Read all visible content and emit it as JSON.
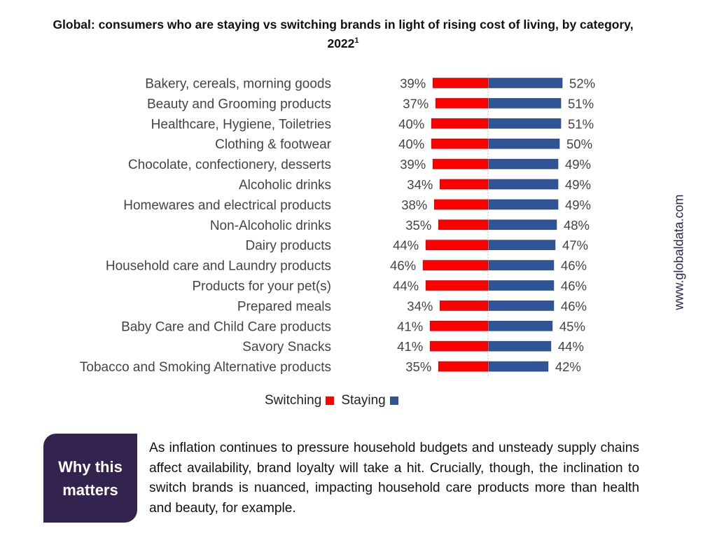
{
  "chart_data": {
    "type": "bar",
    "orientation": "horizontal-diverging",
    "title": "Global: consumers who are staying vs switching brands in light of rising cost of living, by category, 2022",
    "title_superscript": "1",
    "xlabel": "",
    "ylabel": "",
    "unit": "%",
    "grid": false,
    "legend_position": "bottom",
    "categories": [
      "Bakery, cereals, morning goods",
      "Beauty and Grooming products",
      "Healthcare, Hygiene, Toiletries",
      "Clothing & footwear",
      "Chocolate, confectionery, desserts",
      "Alcoholic drinks",
      "Homewares and electrical products",
      "Non-Alcoholic drinks",
      "Dairy products",
      "Household care and Laundry products",
      "Products for your pet(s)",
      "Prepared meals",
      "Baby Care and Child Care products",
      "Savory Snacks",
      "Tobacco and Smoking Alternative products"
    ],
    "series": [
      {
        "name": "Switching",
        "color": "#ff0000",
        "direction": "left",
        "values": [
          39,
          37,
          40,
          40,
          39,
          34,
          38,
          35,
          44,
          46,
          44,
          34,
          41,
          41,
          35
        ]
      },
      {
        "name": "Staying",
        "color": "#2f5597",
        "direction": "right",
        "values": [
          52,
          51,
          51,
          50,
          49,
          49,
          49,
          48,
          47,
          46,
          46,
          46,
          45,
          44,
          42
        ]
      }
    ]
  },
  "legend": {
    "items": [
      {
        "label": "Switching",
        "color": "#ff0000"
      },
      {
        "label": "Staying",
        "color": "#2f5597"
      }
    ]
  },
  "side_label": "www.globaldata.com",
  "why_box": {
    "heading_line1": "Why this",
    "heading_line2": "matters",
    "color": "#33234f",
    "text": "As inflation continues to pressure household budgets and unsteady supply chains affect availability, brand loyalty will take a hit. Crucially, though, the inclination to switch brands is nuanced, impacting household care products more than health and beauty, for example."
  }
}
